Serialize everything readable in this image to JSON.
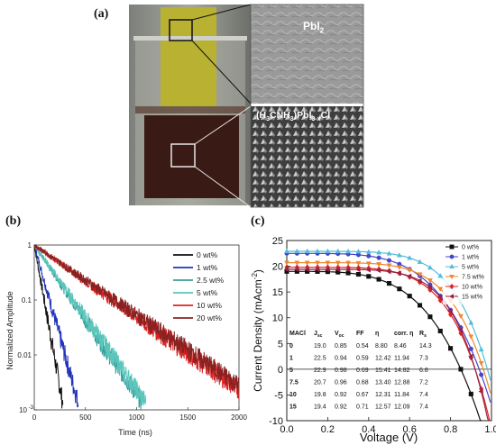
{
  "panel_a": {
    "label": "(a)",
    "inset_top_label": "PbI",
    "inset_top_sub": "2",
    "inset_bottom_label_parts": [
      "(H",
      "3",
      "CNH",
      "3",
      ")PbI",
      "3-x",
      "Cl"
    ]
  },
  "panel_b": {
    "label": "(b)",
    "chart_data": {
      "type": "line",
      "xlabel": "Time (ns)",
      "ylabel": "Normalized Amplitude",
      "xlim": [
        0,
        2000
      ],
      "ylim": [
        0.001,
        1
      ],
      "yscale": "log",
      "x_ticks": [
        "0",
        "500",
        "1000",
        "1500",
        "2000"
      ],
      "y_ticks": [
        "1",
        "0.1",
        "0.01",
        "10"
      ],
      "y_tick_last_exp": "-3",
      "legend_position": "top-right",
      "series": [
        {
          "name": "0 wt%",
          "color": "#111111",
          "tau": 42
        },
        {
          "name": "1 wt%",
          "color": "#2233bb",
          "tau": 65
        },
        {
          "name": "2.5 wt%",
          "color": "#3aa0a0",
          "tau": 160
        },
        {
          "name": "5 wt%",
          "color": "#5cc6bb",
          "tau": 165
        },
        {
          "name": "10 wt%",
          "color": "#dd2222",
          "tau": 330
        },
        {
          "name": "20 wt%",
          "color": "#882222",
          "tau": 340
        }
      ]
    }
  },
  "panel_c": {
    "label": "(c)",
    "chart_data": {
      "type": "line",
      "xlabel": "Voltage (V)",
      "ylabel": "Current Density (mAcm",
      "ylabel_sup": "-2",
      "ylabel_end": ")",
      "xlim": [
        0.0,
        1.0
      ],
      "ylim": [
        -10,
        25
      ],
      "x_ticks": [
        "0.0",
        "0.2",
        "0.4",
        "0.6",
        "0.8",
        "1.0"
      ],
      "y_ticks": [
        "25",
        "20",
        "15",
        "10",
        "5",
        "0",
        "-5",
        "-10"
      ],
      "legend_position": "top-right",
      "series": [
        {
          "name": "0 wt%",
          "color": "#111111",
          "marker": "square",
          "jsc": 19.0,
          "voc": 0.85
        },
        {
          "name": "1 wt%",
          "color": "#4444cc",
          "marker": "circle",
          "jsc": 22.5,
          "voc": 0.94
        },
        {
          "name": "5 wt%",
          "color": "#55bbdd",
          "marker": "triangle",
          "jsc": 22.9,
          "voc": 0.98
        },
        {
          "name": "7.5 wt%",
          "color": "#ee8833",
          "marker": "tri-down",
          "jsc": 20.7,
          "voc": 0.96
        },
        {
          "name": "10 wt%",
          "color": "#dd2222",
          "marker": "diamond",
          "jsc": 19.8,
          "voc": 0.92
        },
        {
          "name": "15 wt%",
          "color": "#992244",
          "marker": "tri-left",
          "jsc": 19.4,
          "voc": 0.92
        }
      ],
      "table": {
        "headers": [
          "MACl",
          "J",
          "V",
          "FF",
          "η",
          "corr. η",
          "R"
        ],
        "header_subs": [
          "",
          "sc",
          "oc",
          "",
          "",
          "",
          "s"
        ],
        "rows": [
          [
            "0",
            "19.0",
            "0.85",
            "0.54",
            "8.80",
            "8.46",
            "14.3"
          ],
          [
            "1",
            "22.5",
            "0.94",
            "0.59",
            "12.42",
            "11.94",
            "7.3"
          ],
          [
            "5",
            "22.9",
            "0.98",
            "0.69",
            "15.41",
            "14.82",
            "6.8"
          ],
          [
            "7.5",
            "20.7",
            "0.96",
            "0.68",
            "13.40",
            "12.88",
            "7.2"
          ],
          [
            "10",
            "19.8",
            "0.92",
            "0.67",
            "12.31",
            "11.84",
            "7.4"
          ],
          [
            "15",
            "19.4",
            "0.92",
            "0.71",
            "12.57",
            "12.09",
            "7.4"
          ]
        ]
      }
    }
  }
}
